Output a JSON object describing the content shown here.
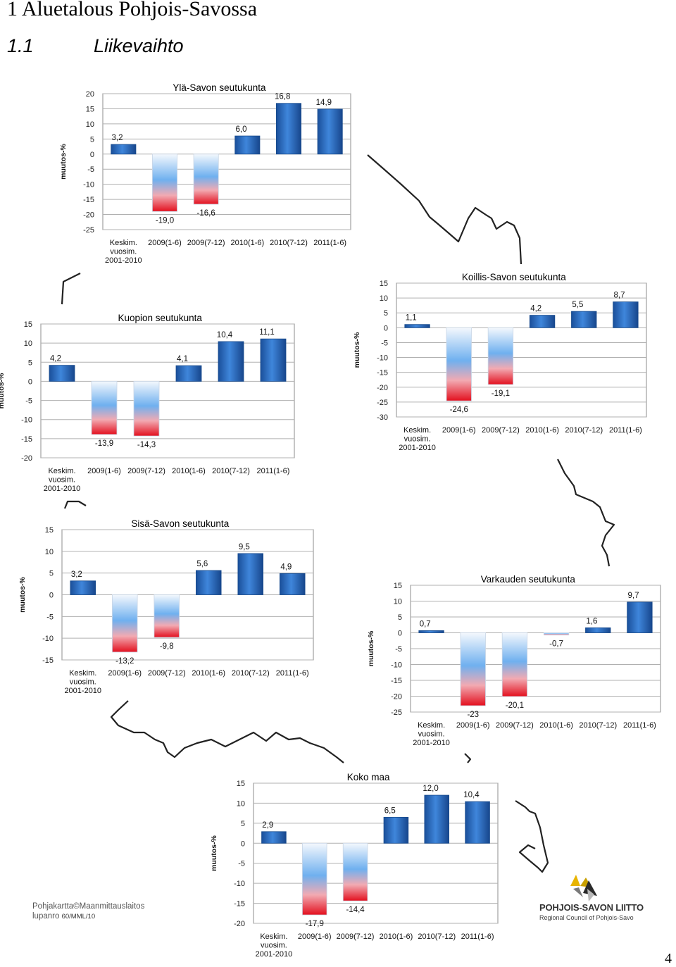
{
  "heading": "1 Aluetalous Pohjois-Savossa",
  "section": {
    "number": "1.1",
    "title": "Liikevaihto"
  },
  "categories": [
    "Keskim.\nvuosim.\n2001-2010",
    "2009(1-6)",
    "2009(7-12)",
    "2010(1-6)",
    "2010(7-12)",
    "2011(1-6)"
  ],
  "ylabel": "muutos-%",
  "colors": {
    "positive": "#1f5fb4",
    "negative_top": "#c6dcf5",
    "negative_bottom": "#e8202e",
    "grid": "#b0b0b0",
    "map_line": "#222222"
  },
  "chart_data": [
    {
      "type": "bar",
      "title": "Ylä-Savon seutukunta",
      "ylabel": "muutos-%",
      "ylim": [
        -25,
        20
      ],
      "ticks": [
        "20",
        "15",
        "10",
        "5",
        "0",
        "-5",
        "-10",
        "-15",
        "-20",
        "-25"
      ],
      "categories": [
        "Keskim.\nvuosim.\n2001-2010",
        "2009(1-6)",
        "2009(7-12)",
        "2010(1-6)",
        "2010(7-12)",
        "2011(1-6)"
      ],
      "values": [
        3.2,
        -19.0,
        -16.6,
        6.0,
        16.8,
        14.9
      ],
      "labels": [
        "3,2",
        "-19,0",
        "-16,6",
        "6,0",
        "16,8",
        "14,9"
      ]
    },
    {
      "type": "bar",
      "title": "Kuopion seutukunta",
      "ylabel": "muutos-%",
      "ylim": [
        -20,
        15
      ],
      "ticks": [
        "15",
        "10",
        "5",
        "0",
        "-5",
        "-10",
        "-15",
        "-20"
      ],
      "categories": [
        "Keskim.\nvuosim.\n2001-2010",
        "2009(1-6)",
        "2009(7-12)",
        "2010(1-6)",
        "2010(7-12)",
        "2011(1-6)"
      ],
      "values": [
        4.2,
        -13.9,
        -14.3,
        4.1,
        10.4,
        11.1
      ],
      "labels": [
        "4,2",
        "-13,9",
        "-14,3",
        "4,1",
        "10,4",
        "11,1"
      ]
    },
    {
      "type": "bar",
      "title": "Koillis-Savon seutukunta",
      "ylabel": "muutos-%",
      "ylim": [
        -30,
        15
      ],
      "ticks": [
        "15",
        "10",
        "5",
        "0",
        "-5",
        "-10",
        "-15",
        "-20",
        "-25",
        "-30"
      ],
      "categories": [
        "Keskim.\nvuosim.\n2001-2010",
        "2009(1-6)",
        "2009(7-12)",
        "2010(1-6)",
        "2010(7-12)",
        "2011(1-6)"
      ],
      "values": [
        1.1,
        -24.6,
        -19.1,
        4.2,
        5.5,
        8.7
      ],
      "labels": [
        "1,1",
        "-24,6",
        "-19,1",
        "4,2",
        "5,5",
        "8,7"
      ]
    },
    {
      "type": "bar",
      "title": "Sisä-Savon seutukunta",
      "ylabel": "muutos-%",
      "ylim": [
        -15,
        15
      ],
      "ticks": [
        "15",
        "10",
        "5",
        "0",
        "-5",
        "-10",
        "-15"
      ],
      "categories": [
        "Keskim.\nvuosim.\n2001-2010",
        "2009(1-6)",
        "2009(7-12)",
        "2010(1-6)",
        "2010(7-12)",
        "2011(1-6)"
      ],
      "values": [
        3.2,
        -13.2,
        -9.8,
        5.6,
        9.5,
        4.9
      ],
      "labels": [
        "3,2",
        "-13,2",
        "-9,8",
        "5,6",
        "9,5",
        "4,9"
      ]
    },
    {
      "type": "bar",
      "title": "Varkauden seutukunta",
      "ylabel": "muutos-%",
      "ylim": [
        -25,
        15
      ],
      "ticks": [
        "15",
        "10",
        "5",
        "0",
        "-5",
        "-10",
        "-15",
        "-20",
        "-25"
      ],
      "categories": [
        "Keskim.\nvuosim.\n2001-2010",
        "2009(1-6)",
        "2009(7-12)",
        "2010(1-6)",
        "2010(7-12)",
        "2011(1-6)"
      ],
      "values": [
        0.7,
        -23,
        -20.1,
        -0.7,
        1.6,
        9.7
      ],
      "labels": [
        "0,7",
        "-23",
        "-20,1",
        "-0,7",
        "1,6",
        "9,7"
      ]
    },
    {
      "type": "bar",
      "title": "Koko maa",
      "ylabel": "muutos-%",
      "ylim": [
        -20,
        15
      ],
      "ticks": [
        "15",
        "10",
        "5",
        "0",
        "-5",
        "-10",
        "-15",
        "-20"
      ],
      "categories": [
        "Keskim.\nvuosim.\n2001-2010",
        "2009(1-6)",
        "2009(7-12)",
        "2010(1-6)",
        "2010(7-12)",
        "2011(1-6)"
      ],
      "values": [
        2.9,
        -17.9,
        -14.4,
        6.5,
        12.0,
        10.4
      ],
      "labels": [
        "2,9",
        "-17,9",
        "-14,4",
        "6,5",
        "12,0",
        "10,4"
      ]
    }
  ],
  "credit": {
    "line1": "Pohjakartta©Maanmittauslaitos",
    "line2_a": "lupanro",
    "line2_b": "60/MML/10"
  },
  "logo": {
    "name": "POHJOIS-SAVON LIITTO",
    "subtitle": "Regional Council of Pohjois-Savo"
  },
  "page_number": "4"
}
